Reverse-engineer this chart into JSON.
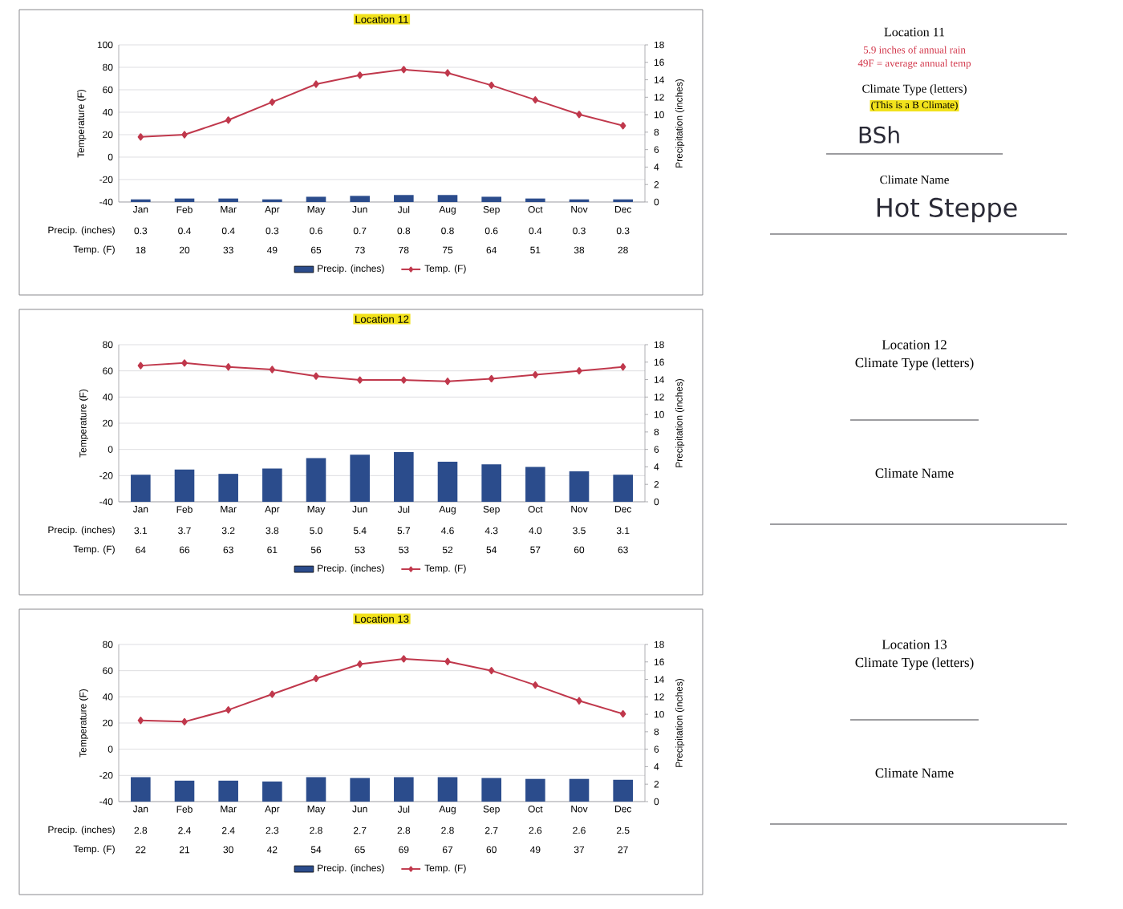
{
  "chart_data": [
    {
      "type": "bar",
      "title": "Location 11",
      "ylabel": "Temperature (F)",
      "y2label": "Precipitation (inches)",
      "categories": [
        "Jan",
        "Feb",
        "Mar",
        "Apr",
        "May",
        "Jun",
        "Jul",
        "Aug",
        "Sep",
        "Oct",
        "Nov",
        "Dec"
      ],
      "series": [
        {
          "name": "Precip. (inches)",
          "type": "bar",
          "axis": "y2",
          "color": "#2b4c8c",
          "values": [
            0.3,
            0.4,
            0.4,
            0.3,
            0.6,
            0.7,
            0.8,
            0.8,
            0.6,
            0.4,
            0.3,
            0.3
          ]
        },
        {
          "name": "Temp. (F)",
          "type": "line",
          "color": "#c0384c",
          "values": [
            18,
            20,
            33,
            49,
            65,
            73,
            78,
            75,
            64,
            51,
            38,
            28
          ]
        }
      ],
      "ylim": [
        -40,
        100
      ],
      "yticks": [
        -40,
        -20,
        0,
        20,
        40,
        60,
        80,
        100
      ],
      "y2lim": [
        0,
        18
      ],
      "y2ticks": [
        0,
        2,
        4,
        6,
        8,
        10,
        12,
        14,
        16,
        18
      ],
      "grid": "y",
      "legend": "bottom",
      "marker": "diamond",
      "data_labels": true
    },
    {
      "type": "other",
      "title": "Location 11",
      "annotations": [
        "5.9 inches of annual rain",
        "49F = average annual temp",
        "Climate Type (letters)",
        "(This is a B Climate)",
        "BSh",
        "Climate Name",
        "Hot Steppe"
      ]
    },
    {
      "type": "bar",
      "title": "Location 12",
      "ylabel": "Temperature (F)",
      "y2label": "Precipitation (inches)",
      "categories": [
        "Jan",
        "Feb",
        "Mar",
        "Apr",
        "May",
        "Jun",
        "Jul",
        "Aug",
        "Sep",
        "Oct",
        "Nov",
        "Dec"
      ],
      "series": [
        {
          "name": "Precip. (inches)",
          "type": "bar",
          "axis": "y2",
          "color": "#2b4c8c",
          "values": [
            3.1,
            3.7,
            3.2,
            3.8,
            5.0,
            5.4,
            5.7,
            4.6,
            4.3,
            4.0,
            3.5,
            3.1
          ],
          "value_labels": [
            "3.1",
            "3.7",
            "3.2",
            "3.8",
            "5.0",
            "5.4",
            "5.7",
            "4.6",
            "4.3",
            "4.0",
            "3.5",
            "3.1"
          ]
        },
        {
          "name": "Temp. (F)",
          "type": "line",
          "color": "#c0384c",
          "values": [
            64,
            66,
            63,
            61,
            56,
            53,
            53,
            52,
            54,
            57,
            60,
            63
          ],
          "value_labels": [
            "64",
            "66",
            "63",
            "61",
            "56",
            "53",
            "53",
            "52",
            "54",
            "57",
            "60",
            "63"
          ]
        }
      ],
      "ylim": [
        -40,
        80
      ],
      "yticks": [
        -40,
        -20,
        0,
        20,
        40,
        60,
        80
      ],
      "y2lim": [
        0,
        18
      ],
      "y2ticks": [
        0,
        2,
        4,
        6,
        8,
        10,
        12,
        14,
        16,
        18
      ],
      "grid": "y",
      "legend": "bottom",
      "marker": "diamond"
    },
    {
      "type": "other",
      "title": "Location 12",
      "annotations": [
        "Climate Type (letters)",
        "Climate Name"
      ]
    },
    {
      "type": "bar",
      "title": "Location 13",
      "ylabel": "Temperature (F)",
      "y2label": "Precipitation (inches)",
      "categories": [
        "Jan",
        "Feb",
        "Mar",
        "Apr",
        "May",
        "Jun",
        "Jul",
        "Aug",
        "Sep",
        "Oct",
        "Nov",
        "Dec"
      ],
      "series": [
        {
          "name": "Precip. (inches)",
          "type": "bar",
          "axis": "y2",
          "color": "#2b4c8c",
          "values": [
            2.8,
            2.4,
            2.4,
            2.3,
            2.8,
            2.7,
            2.8,
            2.8,
            2.7,
            2.6,
            2.6,
            2.5
          ]
        },
        {
          "name": "Temp. (F)",
          "type": "line",
          "color": "#c0384c",
          "values": [
            22,
            21,
            30,
            42,
            54,
            65,
            69,
            67,
            60,
            49,
            37,
            27
          ]
        }
      ],
      "ylim": [
        -40,
        80
      ],
      "yticks": [
        -40,
        -20,
        0,
        20,
        40,
        60,
        80
      ],
      "y2lim": [
        0,
        18
      ],
      "y2ticks": [
        0,
        2,
        4,
        6,
        8,
        10,
        12,
        14,
        16,
        18
      ],
      "grid": "y",
      "legend": "bottom",
      "marker": "diamond",
      "data_labels": true
    },
    {
      "type": "other",
      "title": "Location 13",
      "annotations": [
        "Climate Type (letters)",
        "Climate Name"
      ]
    }
  ]
}
